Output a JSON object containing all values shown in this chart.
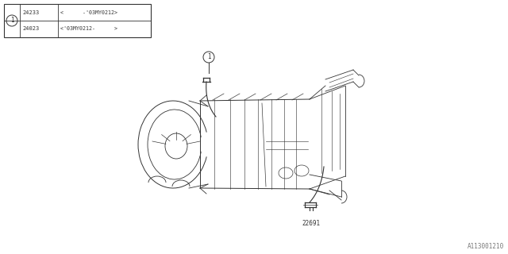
{
  "bg_color": "#ffffff",
  "line_color": "#333333",
  "fig_width": 6.4,
  "fig_height": 3.2,
  "dpi": 100,
  "table": {
    "rows": [
      {
        "part_num": "24233",
        "range": "<      -'03MY0212>"
      },
      {
        "part_num": "24023",
        "range": "<'03MY0212-      >"
      }
    ]
  },
  "diagram_id": "A113001210"
}
